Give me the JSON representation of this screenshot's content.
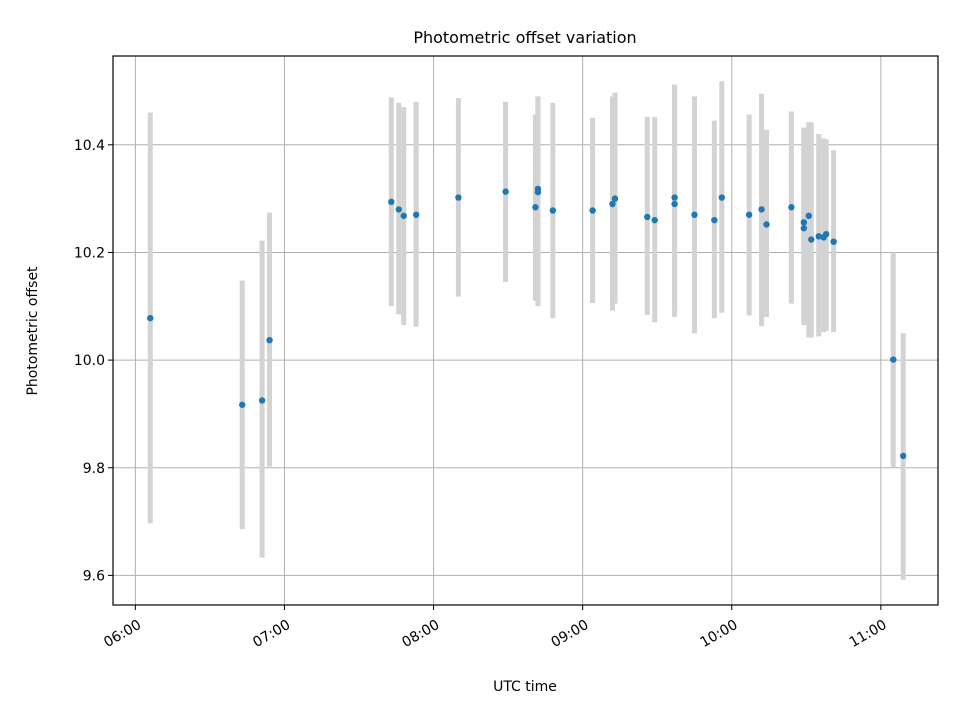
{
  "chart_data": {
    "type": "scatter",
    "title": "Photometric offset variation",
    "xlabel": "UTC time",
    "ylabel": "Photometric offset",
    "x_tick_labels": [
      "06:00",
      "07:00",
      "08:00",
      "09:00",
      "10:00",
      "11:00"
    ],
    "y_tick_labels": [
      "9.6",
      "9.8",
      "10.0",
      "10.2",
      "10.4"
    ],
    "xlim": [
      "05:51",
      "11:23"
    ],
    "ylim": [
      9.545,
      10.565
    ],
    "grid": true,
    "colors": {
      "point": "#1f77b4",
      "errorbar": "#d3d3d3",
      "grid": "#b0b0b0"
    },
    "series": [
      {
        "x": [
          "06:06",
          "06:43",
          "06:51",
          "06:54",
          "07:43",
          "07:46",
          "07:48",
          "07:53",
          "08:10",
          "08:29",
          "08:41",
          "08:42",
          "08:42",
          "08:48",
          "09:04",
          "09:12",
          "09:13",
          "09:26",
          "09:29",
          "09:37",
          "09:37",
          "09:45",
          "09:53",
          "09:56",
          "10:07",
          "10:12",
          "10:14",
          "10:24",
          "10:29",
          "10:29",
          "10:31",
          "10:32",
          "10:35",
          "10:37",
          "10:38",
          "10:41",
          "11:05",
          "11:09"
        ],
        "y": [
          10.078,
          9.917,
          9.925,
          10.037,
          10.294,
          10.28,
          10.268,
          10.27,
          10.302,
          10.313,
          10.284,
          10.312,
          10.318,
          10.278,
          10.278,
          10.29,
          10.3,
          10.266,
          10.26,
          10.29,
          10.302,
          10.27,
          10.26,
          10.302,
          10.27,
          10.28,
          10.252,
          10.284,
          10.256,
          10.245,
          10.268,
          10.224,
          10.23,
          10.228,
          10.234,
          10.22,
          10.001,
          9.822
        ],
        "err_low": [
          9.697,
          9.686,
          9.633,
          9.802,
          10.1,
          10.085,
          10.065,
          10.062,
          10.118,
          10.145,
          10.11,
          10.105,
          10.1,
          10.078,
          10.106,
          10.092,
          10.105,
          10.084,
          10.07,
          10.08,
          10.1,
          10.05,
          10.078,
          10.088,
          10.083,
          10.063,
          10.08,
          10.105,
          10.08,
          10.065,
          10.042,
          10.042,
          10.044,
          10.052,
          10.054,
          10.052,
          9.8,
          9.592
        ],
        "err_high": [
          10.46,
          10.148,
          10.222,
          10.274,
          10.488,
          10.478,
          10.47,
          10.48,
          10.487,
          10.48,
          10.456,
          10.49,
          10.49,
          10.478,
          10.45,
          10.49,
          10.497,
          10.452,
          10.452,
          10.512,
          10.512,
          10.49,
          10.445,
          10.518,
          10.456,
          10.495,
          10.428,
          10.462,
          10.427,
          10.432,
          10.442,
          10.442,
          10.42,
          10.412,
          10.41,
          10.39,
          10.2,
          10.05
        ]
      }
    ]
  }
}
